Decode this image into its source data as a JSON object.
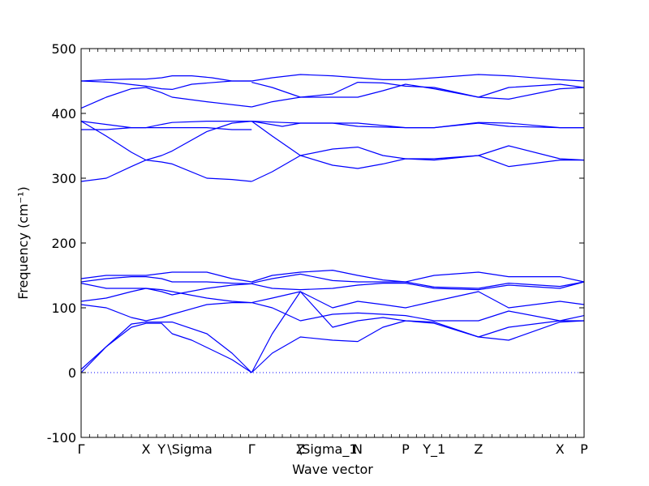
{
  "chart_data": {
    "type": "line",
    "xlabel": "Wave vector",
    "ylabel": "Frequency (cm⁻¹)",
    "ylim": [
      -100,
      500
    ],
    "y_ticks": [
      -100,
      0,
      100,
      200,
      300,
      400,
      500
    ],
    "grid": false,
    "x_ticks": [
      {
        "label": "Γ",
        "x": 0
      },
      {
        "label": "X",
        "x": 0.129
      },
      {
        "label": "Y",
        "x": 0.16
      },
      {
        "label": "\\Sigma",
        "x": 0.181
      },
      {
        "label": "Γ",
        "x": 0.339
      },
      {
        "label": "Z",
        "x": 0.436
      },
      {
        "label": "\\Sigma_1",
        "x": 0.44
      },
      {
        "label": "N",
        "x": 0.55
      },
      {
        "label": "P",
        "x": 0.645
      },
      {
        "label": "Y_1",
        "x": 0.702
      },
      {
        "label": "Z",
        "x": 0.79
      },
      {
        "label": "X",
        "x": 0.952
      },
      {
        "label": "P",
        "x": 1.0
      }
    ],
    "line_color": "#0000ff",
    "zero_line_color": "#0000ff",
    "series": [
      {
        "x": [
          0,
          0.05,
          0.1,
          0.129,
          0.16,
          0.181,
          0.22,
          0.26,
          0.3,
          0.339
        ],
        "y": [
          450,
          452,
          453,
          453,
          455,
          458,
          458,
          455,
          450,
          450
        ]
      },
      {
        "x": [
          0,
          0.06,
          0.129,
          0.16,
          0.181,
          0.22,
          0.3,
          0.339
        ],
        "y": [
          450,
          448,
          442,
          438,
          437,
          445,
          450,
          450
        ]
      },
      {
        "x": [
          0,
          0.05,
          0.1,
          0.129,
          0.16,
          0.181,
          0.25,
          0.339
        ],
        "y": [
          408,
          425,
          438,
          440,
          432,
          425,
          418,
          410
        ]
      },
      {
        "x": [
          0,
          0.05,
          0.1,
          0.129,
          0.16,
          0.181,
          0.25,
          0.3,
          0.339
        ],
        "y": [
          388,
          383,
          378,
          378,
          383,
          386,
          388,
          388,
          388
        ]
      },
      {
        "x": [
          0,
          0.05,
          0.1,
          0.129,
          0.16,
          0.181,
          0.25,
          0.3,
          0.339
        ],
        "y": [
          375,
          375,
          378,
          378,
          378,
          378,
          378,
          375,
          375
        ]
      },
      {
        "x": [
          0,
          0.05,
          0.1,
          0.129,
          0.16,
          0.181,
          0.25,
          0.3,
          0.339
        ],
        "y": [
          388,
          365,
          340,
          328,
          325,
          322,
          300,
          298,
          295
        ]
      },
      {
        "x": [
          0,
          0.05,
          0.1,
          0.129,
          0.16,
          0.181,
          0.25,
          0.3,
          0.339
        ],
        "y": [
          295,
          300,
          318,
          328,
          335,
          342,
          372,
          385,
          388
        ]
      },
      {
        "x": [
          0,
          0.05,
          0.1,
          0.129,
          0.16,
          0.181,
          0.25,
          0.3,
          0.339
        ],
        "y": [
          145,
          150,
          150,
          150,
          153,
          155,
          155,
          145,
          140
        ]
      },
      {
        "x": [
          0,
          0.05,
          0.1,
          0.129,
          0.16,
          0.181,
          0.25,
          0.3,
          0.339
        ],
        "y": [
          140,
          145,
          148,
          148,
          145,
          140,
          140,
          138,
          137
        ]
      },
      {
        "x": [
          0,
          0.05,
          0.1,
          0.129,
          0.16,
          0.181,
          0.25,
          0.3,
          0.339
        ],
        "y": [
          138,
          130,
          130,
          130,
          125,
          120,
          130,
          135,
          137
        ]
      },
      {
        "x": [
          0,
          0.05,
          0.1,
          0.129,
          0.16,
          0.181,
          0.25,
          0.3,
          0.339
        ],
        "y": [
          110,
          115,
          125,
          130,
          128,
          125,
          115,
          110,
          108
        ]
      },
      {
        "x": [
          0,
          0.05,
          0.1,
          0.129,
          0.16,
          0.181,
          0.25,
          0.3,
          0.339
        ],
        "y": [
          105,
          100,
          85,
          80,
          85,
          90,
          105,
          108,
          108
        ]
      },
      {
        "x": [
          0,
          0.05,
          0.1,
          0.129,
          0.16,
          0.181,
          0.25,
          0.3,
          0.339
        ],
        "y": [
          5,
          40,
          75,
          78,
          78,
          78,
          60,
          30,
          0
        ]
      },
      {
        "x": [
          0,
          0.05,
          0.1,
          0.129,
          0.16,
          0.181,
          0.22,
          0.3,
          0.339
        ],
        "y": [
          0,
          40,
          70,
          76,
          76,
          60,
          50,
          20,
          0
        ]
      },
      {
        "x": [
          0.339,
          0.38,
          0.436,
          0.5,
          0.55,
          0.6,
          0.645,
          0.702,
          0.79,
          0.85,
          0.952,
          1.0
        ],
        "y": [
          450,
          455,
          460,
          458,
          455,
          452,
          452,
          455,
          460,
          458,
          452,
          450
        ]
      },
      {
        "x": [
          0.339,
          0.38,
          0.436,
          0.5,
          0.55,
          0.6,
          0.645,
          0.702,
          0.79,
          0.85,
          0.952,
          1.0
        ],
        "y": [
          448,
          440,
          425,
          430,
          448,
          447,
          442,
          440,
          425,
          440,
          445,
          440
        ]
      },
      {
        "x": [
          0.339,
          0.38,
          0.436,
          0.5,
          0.55,
          0.6,
          0.645,
          0.702,
          0.79,
          0.85,
          0.952,
          1.0
        ],
        "y": [
          410,
          418,
          425,
          425,
          425,
          435,
          445,
          438,
          425,
          422,
          438,
          440
        ]
      },
      {
        "x": [
          0.339,
          0.4,
          0.436,
          0.5,
          0.55,
          0.645,
          0.702,
          0.79,
          0.85,
          0.952,
          1.0
        ],
        "y": [
          388,
          386,
          385,
          385,
          385,
          378,
          378,
          386,
          385,
          378,
          378
        ]
      },
      {
        "x": [
          0.339,
          0.4,
          0.436,
          0.5,
          0.55,
          0.645,
          0.702,
          0.79,
          0.85,
          0.952,
          1.0
        ],
        "y": [
          388,
          380,
          385,
          385,
          380,
          378,
          378,
          385,
          380,
          378,
          378
        ]
      },
      {
        "x": [
          0.339,
          0.38,
          0.436,
          0.5,
          0.55,
          0.6,
          0.645,
          0.702,
          0.79,
          0.85,
          0.952,
          1.0
        ],
        "y": [
          295,
          310,
          335,
          345,
          348,
          335,
          330,
          330,
          335,
          350,
          330,
          328
        ]
      },
      {
        "x": [
          0.339,
          0.38,
          0.436,
          0.5,
          0.55,
          0.6,
          0.645,
          0.702,
          0.79,
          0.85,
          0.952,
          1.0
        ],
        "y": [
          388,
          365,
          335,
          320,
          315,
          322,
          330,
          328,
          335,
          318,
          328,
          328
        ]
      },
      {
        "x": [
          0.339,
          0.38,
          0.436,
          0.5,
          0.55,
          0.6,
          0.645,
          0.702,
          0.79,
          0.85,
          0.952,
          1.0
        ],
        "y": [
          140,
          150,
          155,
          158,
          150,
          143,
          140,
          150,
          155,
          148,
          148,
          140
        ]
      },
      {
        "x": [
          0.339,
          0.38,
          0.436,
          0.5,
          0.55,
          0.6,
          0.645,
          0.702,
          0.79,
          0.85,
          0.952,
          1.0
        ],
        "y": [
          138,
          145,
          152,
          142,
          140,
          140,
          140,
          132,
          130,
          138,
          133,
          140
        ]
      },
      {
        "x": [
          0.339,
          0.38,
          0.436,
          0.5,
          0.55,
          0.6,
          0.645,
          0.702,
          0.79,
          0.85,
          0.952,
          1.0
        ],
        "y": [
          137,
          130,
          128,
          130,
          135,
          138,
          138,
          130,
          128,
          135,
          130,
          140
        ]
      },
      {
        "x": [
          0.339,
          0.38,
          0.436,
          0.5,
          0.55,
          0.6,
          0.645,
          0.702,
          0.79,
          0.85,
          0.952,
          1.0
        ],
        "y": [
          108,
          115,
          125,
          100,
          110,
          105,
          100,
          110,
          125,
          100,
          110,
          105
        ]
      },
      {
        "x": [
          0.339,
          0.38,
          0.436,
          0.5,
          0.55,
          0.6,
          0.645,
          0.702,
          0.79,
          0.85,
          0.952,
          1.0
        ],
        "y": [
          108,
          100,
          80,
          90,
          92,
          90,
          88,
          80,
          80,
          95,
          80,
          88
        ]
      },
      {
        "x": [
          0.339,
          0.38,
          0.436,
          0.5,
          0.55,
          0.6,
          0.645,
          0.702,
          0.79,
          0.85,
          0.952,
          1.0
        ],
        "y": [
          0,
          60,
          125,
          70,
          80,
          85,
          80,
          78,
          55,
          70,
          80,
          80
        ]
      },
      {
        "x": [
          0.339,
          0.38,
          0.436,
          0.5,
          0.55,
          0.6,
          0.645,
          0.702,
          0.79,
          0.85,
          0.952,
          1.0
        ],
        "y": [
          0,
          30,
          55,
          50,
          48,
          70,
          80,
          76,
          55,
          50,
          78,
          80
        ]
      }
    ]
  }
}
